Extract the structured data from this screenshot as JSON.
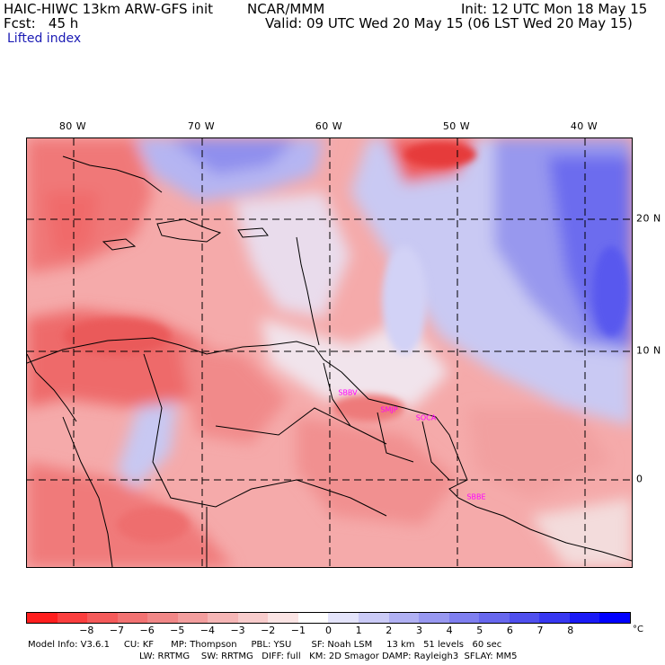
{
  "header": {
    "model": "HAIC-HIWC 13km ARW-GFS init",
    "org": "NCAR/MMM",
    "init": "Init: 12 UTC Mon 18 May 15",
    "fcst": "Fcst:   45 h",
    "valid": "Valid: 09 UTC Wed 20 May 15 (06 LST Wed 20 May 15)",
    "field": "Lifted index"
  },
  "map": {
    "lon_labels": [
      "80 W",
      "70 W",
      "60 W",
      "50 W",
      "40 W"
    ],
    "lat_labels": [
      "20 N",
      "10 N",
      "0"
    ],
    "stations": [
      "SBBV",
      "SMJP",
      "SOCA",
      "SBBE"
    ]
  },
  "colorbar": {
    "colors": [
      "#ff1e1e",
      "#fb3e3e",
      "#f55a5a",
      "#f27272",
      "#f18787",
      "#f39e9e",
      "#f6b6b6",
      "#f8cccc",
      "#fbe4e4",
      "#ffffff",
      "#e4e4fb",
      "#cbcbf7",
      "#b1b1f4",
      "#9898f1",
      "#7f7ff0",
      "#6767ee",
      "#4f4fee",
      "#3737f1",
      "#1a1af6",
      "#0000ff"
    ],
    "labels": [
      "−8",
      "−7",
      "−6",
      "−5",
      "−4",
      "−3",
      "−2",
      "−1",
      "0",
      "1",
      "2",
      "3",
      "4",
      "5",
      "6",
      "7",
      "8"
    ],
    "unit": "°C"
  },
  "footer": {
    "line1": "Model Info: V3.6.1     CU: KF      MP: Thompson     PBL: YSU       SF: Noah LSM     13 km   51 levels   60 sec",
    "line2": "LW: RRTMG    SW: RRTMG   DIFF: full   KM: 2D Smagor DAMP: Rayleigh3  SFLAY: MM5"
  }
}
